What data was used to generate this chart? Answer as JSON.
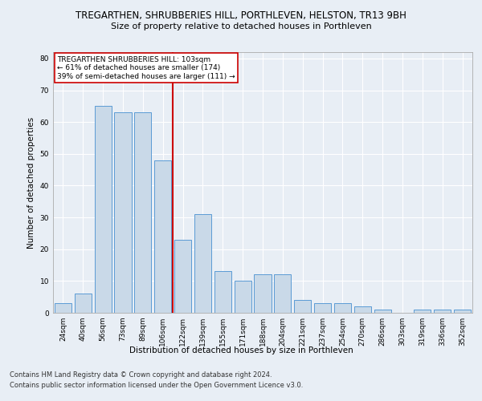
{
  "title": "TREGARTHEN, SHRUBBERIES HILL, PORTHLEVEN, HELSTON, TR13 9BH",
  "subtitle": "Size of property relative to detached houses in Porthleven",
  "xlabel": "Distribution of detached houses by size in Porthleven",
  "ylabel": "Number of detached properties",
  "categories": [
    "24sqm",
    "40sqm",
    "56sqm",
    "73sqm",
    "89sqm",
    "106sqm",
    "122sqm",
    "139sqm",
    "155sqm",
    "171sqm",
    "188sqm",
    "204sqm",
    "221sqm",
    "237sqm",
    "254sqm",
    "270sqm",
    "286sqm",
    "303sqm",
    "319sqm",
    "336sqm",
    "352sqm"
  ],
  "values": [
    3,
    6,
    65,
    63,
    63,
    48,
    23,
    31,
    13,
    10,
    12,
    12,
    4,
    3,
    3,
    2,
    1,
    0,
    1,
    1,
    1
  ],
  "bar_color": "#c9d9e8",
  "bar_edge_color": "#5b9bd5",
  "highlight_index": 5,
  "highlight_color": "#cc0000",
  "ylim": [
    0,
    82
  ],
  "yticks": [
    0,
    10,
    20,
    30,
    40,
    50,
    60,
    70,
    80
  ],
  "annotation_text": "TREGARTHEN SHRUBBERIES HILL: 103sqm\n← 61% of detached houses are smaller (174)\n39% of semi-detached houses are larger (111) →",
  "annotation_box_color": "#ffffff",
  "annotation_box_edge": "#cc0000",
  "footer_line1": "Contains HM Land Registry data © Crown copyright and database right 2024.",
  "footer_line2": "Contains public sector information licensed under the Open Government Licence v3.0.",
  "background_color": "#e8eef5",
  "fig_background_color": "#e8eef5",
  "grid_color": "#ffffff",
  "title_fontsize": 8.5,
  "subtitle_fontsize": 8,
  "axis_label_fontsize": 7.5,
  "tick_fontsize": 6.5,
  "annotation_fontsize": 6.5,
  "footer_fontsize": 6
}
